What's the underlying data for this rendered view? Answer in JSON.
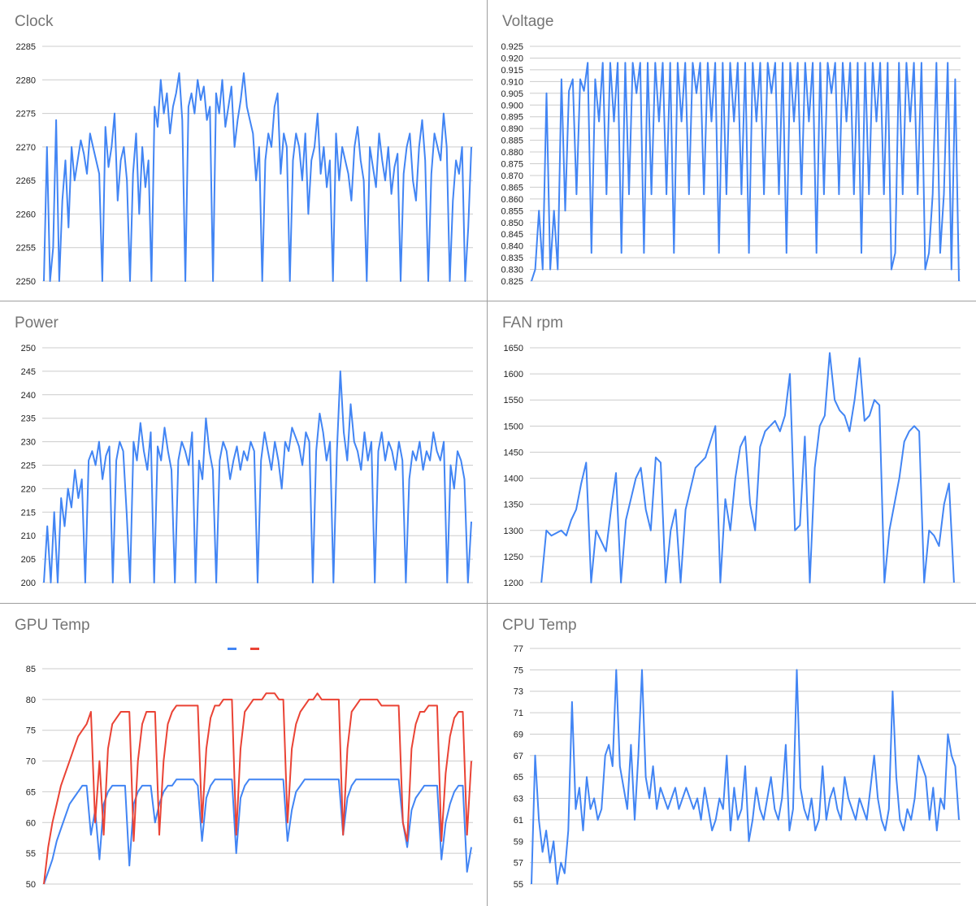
{
  "chart_data": [
    {
      "id": "clock",
      "type": "line",
      "title": "Clock",
      "xlabel": "",
      "ylabel": "",
      "ylim": [
        2250,
        2285
      ],
      "yticks": [
        "2250",
        "2255",
        "2260",
        "2265",
        "2270",
        "2275",
        "2280",
        "2285"
      ],
      "grid": true,
      "series": [
        {
          "color": "#4285F4",
          "values": [
            2250,
            2270,
            2250,
            2255,
            2274,
            2250,
            2262,
            2268,
            2258,
            2270,
            2265,
            2268,
            2271,
            2269,
            2266,
            2272,
            2270,
            2268,
            2266,
            2250,
            2273,
            2267,
            2270,
            2275,
            2262,
            2268,
            2270,
            2265,
            2250,
            2266,
            2272,
            2260,
            2270,
            2264,
            2268,
            2250,
            2276,
            2273,
            2280,
            2275,
            2278,
            2272,
            2276,
            2278,
            2281,
            2274,
            2250,
            2276,
            2278,
            2275,
            2280,
            2277,
            2279,
            2274,
            2276,
            2250,
            2278,
            2275,
            2280,
            2273,
            2276,
            2279,
            2270,
            2274,
            2277,
            2281,
            2276,
            2274,
            2272,
            2265,
            2270,
            2250,
            2268,
            2272,
            2270,
            2276,
            2278,
            2266,
            2272,
            2270,
            2250,
            2268,
            2272,
            2270,
            2265,
            2272,
            2260,
            2268,
            2270,
            2275,
            2266,
            2270,
            2264,
            2268,
            2250,
            2272,
            2265,
            2270,
            2268,
            2266,
            2262,
            2270,
            2273,
            2268,
            2265,
            2250,
            2270,
            2267,
            2264,
            2272,
            2268,
            2265,
            2270,
            2263,
            2267,
            2269,
            2250,
            2266,
            2270,
            2272,
            2265,
            2262,
            2270,
            2274,
            2268,
            2250,
            2266,
            2272,
            2270,
            2268,
            2275,
            2270,
            2250,
            2262,
            2268,
            2266,
            2270,
            2250,
            2258,
            2270
          ]
        }
      ]
    },
    {
      "id": "voltage",
      "type": "line",
      "title": "Voltage",
      "xlabel": "",
      "ylabel": "",
      "ylim": [
        0.825,
        0.925
      ],
      "yticks": [
        "0.825",
        "0.830",
        "0.835",
        "0.840",
        "0.845",
        "0.850",
        "0.855",
        "0.860",
        "0.865",
        "0.870",
        "0.875",
        "0.880",
        "0.885",
        "0.890",
        "0.895",
        "0.900",
        "0.905",
        "0.910",
        "0.915",
        "0.920",
        "0.925"
      ],
      "grid": true,
      "series": [
        {
          "color": "#4285F4",
          "values": [
            0.825,
            0.83,
            0.855,
            0.83,
            0.905,
            0.83,
            0.855,
            0.83,
            0.911,
            0.855,
            0.906,
            0.911,
            0.862,
            0.911,
            0.906,
            0.918,
            0.837,
            0.911,
            0.893,
            0.918,
            0.862,
            0.918,
            0.893,
            0.918,
            0.837,
            0.918,
            0.862,
            0.918,
            0.905,
            0.918,
            0.837,
            0.918,
            0.862,
            0.918,
            0.893,
            0.918,
            0.862,
            0.918,
            0.837,
            0.918,
            0.893,
            0.918,
            0.862,
            0.918,
            0.905,
            0.918,
            0.862,
            0.918,
            0.893,
            0.918,
            0.837,
            0.918,
            0.862,
            0.918,
            0.893,
            0.918,
            0.862,
            0.918,
            0.837,
            0.918,
            0.893,
            0.918,
            0.862,
            0.918,
            0.905,
            0.918,
            0.862,
            0.918,
            0.837,
            0.918,
            0.893,
            0.918,
            0.862,
            0.918,
            0.893,
            0.918,
            0.837,
            0.918,
            0.862,
            0.918,
            0.905,
            0.918,
            0.862,
            0.918,
            0.893,
            0.918,
            0.862,
            0.918,
            0.837,
            0.918,
            0.862,
            0.918,
            0.893,
            0.918,
            0.862,
            0.918,
            0.83,
            0.837,
            0.918,
            0.862,
            0.918,
            0.893,
            0.918,
            0.862,
            0.918,
            0.83,
            0.837,
            0.862,
            0.918,
            0.837,
            0.862,
            0.918,
            0.83,
            0.911,
            0.825
          ]
        }
      ]
    },
    {
      "id": "power",
      "type": "line",
      "title": "Power",
      "xlabel": "",
      "ylabel": "",
      "ylim": [
        200,
        250
      ],
      "yticks": [
        "200",
        "205",
        "210",
        "215",
        "220",
        "225",
        "230",
        "235",
        "240",
        "245",
        "250"
      ],
      "grid": true,
      "series": [
        {
          "color": "#4285F4",
          "values": [
            200,
            212,
            200,
            215,
            200,
            218,
            212,
            220,
            216,
            224,
            218,
            222,
            200,
            226,
            228,
            225,
            230,
            222,
            227,
            229,
            200,
            226,
            230,
            228,
            215,
            200,
            230,
            226,
            234,
            228,
            224,
            232,
            200,
            229,
            226,
            233,
            228,
            224,
            200,
            226,
            230,
            228,
            225,
            232,
            200,
            226,
            222,
            235,
            228,
            224,
            200,
            226,
            230,
            228,
            222,
            226,
            229,
            224,
            228,
            226,
            230,
            228,
            200,
            226,
            232,
            228,
            224,
            230,
            226,
            220,
            230,
            228,
            233,
            231,
            229,
            225,
            232,
            230,
            200,
            228,
            236,
            232,
            226,
            230,
            200,
            228,
            245,
            232,
            226,
            238,
            230,
            228,
            224,
            232,
            226,
            230,
            200,
            228,
            232,
            226,
            230,
            228,
            224,
            230,
            226,
            200,
            222,
            228,
            226,
            230,
            224,
            228,
            226,
            232,
            228,
            226,
            230,
            200,
            225,
            220,
            228,
            226,
            222,
            200,
            213
          ]
        }
      ]
    },
    {
      "id": "fan",
      "type": "line",
      "title": "FAN rpm",
      "xlabel": "",
      "ylabel": "",
      "ylim": [
        1200,
        1650
      ],
      "yticks": [
        "1200",
        "1250",
        "1300",
        "1350",
        "1400",
        "1450",
        "1500",
        "1550",
        "1600",
        "1650"
      ],
      "grid": true,
      "series": [
        {
          "color": "#4285F4",
          "values": [
            null,
            null,
            1200,
            1300,
            1290,
            1295,
            1300,
            1290,
            1320,
            1340,
            1390,
            1430,
            1200,
            1300,
            1280,
            1260,
            1340,
            1410,
            1200,
            1320,
            1360,
            1400,
            1420,
            1340,
            1300,
            1440,
            1430,
            1200,
            1300,
            1340,
            1200,
            1340,
            1380,
            1420,
            1430,
            1440,
            1470,
            1500,
            1200,
            1360,
            1300,
            1400,
            1460,
            1480,
            1350,
            1300,
            1460,
            1490,
            1500,
            1510,
            1490,
            1520,
            1600,
            1300,
            1310,
            1480,
            1200,
            1420,
            1500,
            1520,
            1640,
            1550,
            1530,
            1520,
            1490,
            1550,
            1630,
            1510,
            1520,
            1550,
            1540,
            1200,
            1300,
            1350,
            1400,
            1470,
            1490,
            1500,
            1490,
            1200,
            1300,
            1290,
            1270,
            1350,
            1390,
            1200,
            null
          ]
        }
      ]
    },
    {
      "id": "gputemp",
      "type": "line",
      "title": "GPU Temp",
      "xlabel": "",
      "ylabel": "",
      "ylim": [
        50,
        85
      ],
      "yticks": [
        "50",
        "55",
        "60",
        "65",
        "70",
        "75",
        "80",
        "85"
      ],
      "grid": true,
      "legend": "top-center",
      "series": [
        {
          "color": "#4285F4",
          "values": [
            50,
            52,
            54,
            57,
            59,
            61,
            63,
            64,
            65,
            66,
            66,
            58,
            62,
            54,
            63,
            65,
            66,
            66,
            66,
            66,
            53,
            63,
            65,
            66,
            66,
            66,
            60,
            63,
            65,
            66,
            66,
            67,
            67,
            67,
            67,
            67,
            66,
            57,
            64,
            66,
            67,
            67,
            67,
            67,
            67,
            55,
            64,
            66,
            67,
            67,
            67,
            67,
            67,
            67,
            67,
            67,
            67,
            57,
            62,
            65,
            66,
            67,
            67,
            67,
            67,
            67,
            67,
            67,
            67,
            67,
            58,
            64,
            66,
            67,
            67,
            67,
            67,
            67,
            67,
            67,
            67,
            67,
            67,
            67,
            60,
            56,
            62,
            64,
            65,
            66,
            66,
            66,
            66,
            54,
            60,
            63,
            65,
            66,
            66,
            52,
            56
          ]
        },
        {
          "color": "#EA4335",
          "values": [
            50,
            56,
            60,
            63,
            66,
            68,
            70,
            72,
            74,
            75,
            76,
            78,
            60,
            70,
            58,
            72,
            76,
            77,
            78,
            78,
            78,
            57,
            70,
            76,
            78,
            78,
            78,
            58,
            70,
            76,
            78,
            79,
            79,
            79,
            79,
            79,
            79,
            60,
            72,
            77,
            79,
            79,
            80,
            80,
            80,
            58,
            72,
            78,
            79,
            80,
            80,
            80,
            81,
            81,
            81,
            80,
            80,
            60,
            72,
            76,
            78,
            79,
            80,
            80,
            81,
            80,
            80,
            80,
            80,
            80,
            58,
            72,
            78,
            79,
            80,
            80,
            80,
            80,
            80,
            79,
            79,
            79,
            79,
            79,
            60,
            57,
            72,
            76,
            78,
            78,
            79,
            79,
            79,
            57,
            68,
            74,
            77,
            78,
            78,
            58,
            70
          ]
        }
      ]
    },
    {
      "id": "cputemp",
      "type": "line",
      "title": "CPU Temp",
      "xlabel": "",
      "ylabel": "",
      "ylim": [
        55,
        77
      ],
      "yticks": [
        "55",
        "57",
        "59",
        "61",
        "63",
        "65",
        "67",
        "69",
        "71",
        "73",
        "75",
        "77"
      ],
      "grid": true,
      "series": [
        {
          "color": "#4285F4",
          "values": [
            55,
            67,
            61,
            58,
            60,
            57,
            59,
            55,
            57,
            56,
            60,
            72,
            62,
            64,
            60,
            65,
            62,
            63,
            61,
            62,
            67,
            68,
            66,
            75,
            66,
            64,
            62,
            68,
            61,
            67,
            75,
            65,
            63,
            66,
            62,
            64,
            63,
            62,
            63,
            64,
            62,
            63,
            64,
            63,
            62,
            63,
            61,
            64,
            62,
            60,
            61,
            63,
            62,
            67,
            60,
            64,
            61,
            62,
            66,
            59,
            61,
            64,
            62,
            61,
            63,
            65,
            62,
            61,
            63,
            68,
            60,
            62,
            75,
            64,
            62,
            61,
            63,
            60,
            61,
            66,
            61,
            63,
            64,
            62,
            61,
            65,
            63,
            62,
            61,
            63,
            62,
            61,
            64,
            67,
            63,
            61,
            60,
            62,
            73,
            65,
            61,
            60,
            62,
            61,
            63,
            67,
            66,
            65,
            61,
            64,
            60,
            63,
            62,
            69,
            67,
            66,
            61
          ]
        }
      ]
    }
  ]
}
